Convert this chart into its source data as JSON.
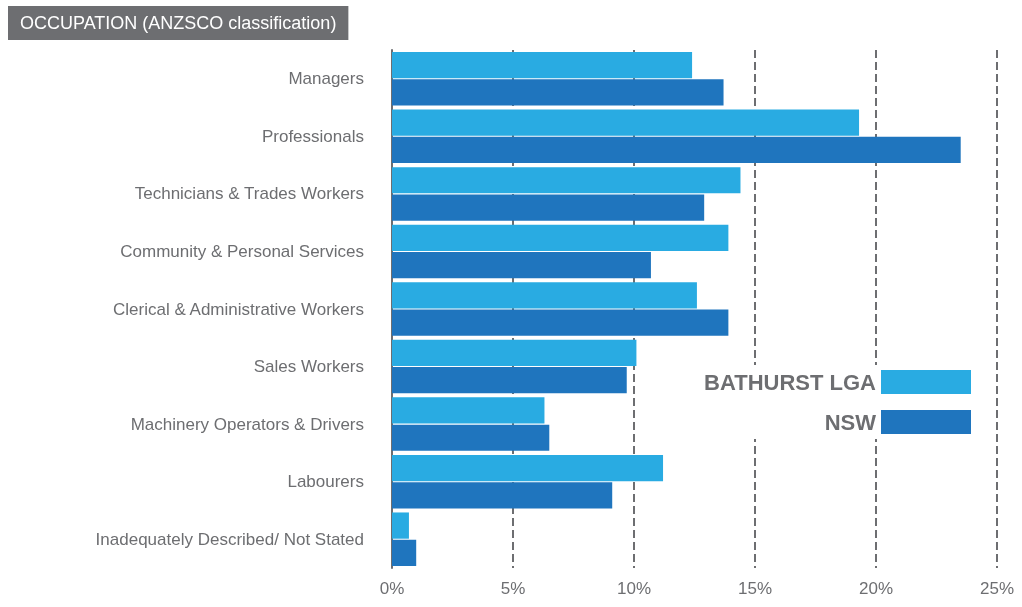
{
  "chart_data": {
    "type": "bar",
    "orientation": "horizontal",
    "title": "OCCUPATION (ANZSCO classification)",
    "categories": [
      "Managers",
      "Professionals",
      "Technicians & Trades Workers",
      "Community & Personal Services",
      "Clerical & Administrative Workers",
      "Sales Workers",
      "Machinery Operators & Drivers",
      "Labourers",
      "Inadequately Described/ Not Stated"
    ],
    "series": [
      {
        "name": "BATHURST LGA",
        "color": "#29abe2",
        "values": [
          12.4,
          19.3,
          14.4,
          13.9,
          12.6,
          10.1,
          6.3,
          11.2,
          0.7
        ]
      },
      {
        "name": "NSW",
        "color": "#1f75be",
        "values": [
          13.7,
          23.5,
          12.9,
          10.7,
          13.9,
          9.7,
          6.5,
          9.1,
          1.0
        ]
      }
    ],
    "xlim": [
      0,
      25
    ],
    "xticks": [
      {
        "value": 0,
        "label": "0%"
      },
      {
        "value": 5,
        "label": "5%"
      },
      {
        "value": 10,
        "label": "10%"
      },
      {
        "value": 15,
        "label": "15%"
      },
      {
        "value": 20,
        "label": "20%"
      },
      {
        "value": 25,
        "label": "25%"
      }
    ],
    "grid": "x",
    "line_style": "dashed",
    "legend": "right"
  }
}
